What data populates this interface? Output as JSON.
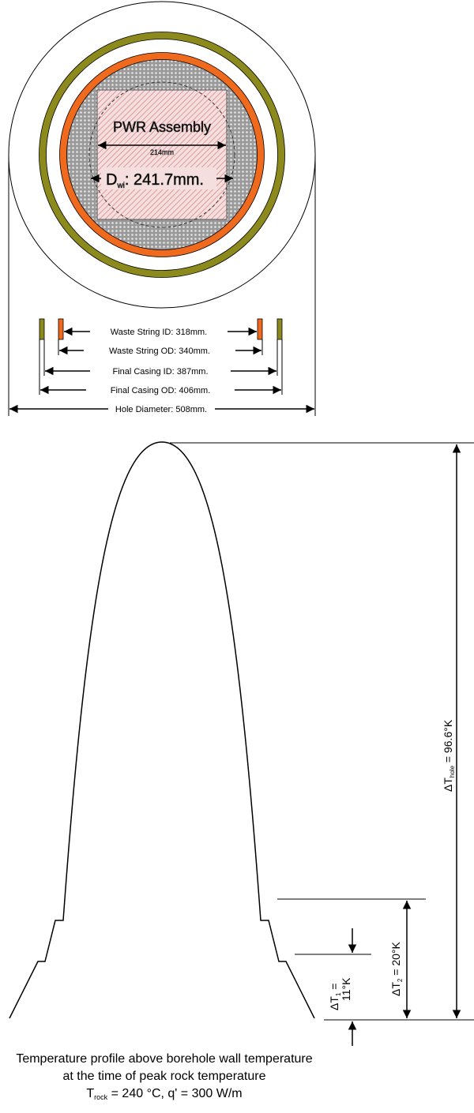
{
  "cross_section": {
    "assembly_label": "PWR Assembly",
    "assembly_width": "214mm",
    "waste_id_label": "D",
    "waste_id_subscript": "wi",
    "waste_id_value": ": 241.7mm."
  },
  "dimensions": {
    "waste_string_id": "Waste String ID: 318mm.",
    "waste_string_od": "Waste String OD: 340mm.",
    "final_casing_id": "Final Casing ID: 387mm.",
    "final_casing_od": "Final Casing OD: 406mm.",
    "hole_diameter": "Hole Diameter: 508mm."
  },
  "profile": {
    "dt_hole": {
      "prefix": "ΔT",
      "sub": "hole",
      "value": " = 96.6°K"
    },
    "dt_2": {
      "prefix": "ΔT",
      "sub": "2",
      "value": " = 20°K"
    },
    "dt_1": {
      "prefix": "ΔT",
      "sub": "1",
      "value": " =",
      "line2": "11°K"
    }
  },
  "caption": {
    "line1": "Temperature profile above borehole wall temperature",
    "line2": "at the time of peak rock temperature",
    "line3_a": "T",
    "line3_sub": "rock",
    "line3_b": " = 240 °C, q' = 300 W/m"
  },
  "colors": {
    "orange": "#f06a1e",
    "olive": "#8c8a1c",
    "hatch": "#d88a8a",
    "grid": "#7a7a7a"
  }
}
